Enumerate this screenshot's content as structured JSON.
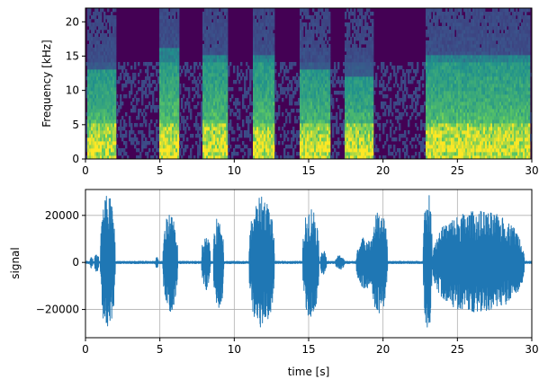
{
  "chart_data": [
    {
      "type": "heatmap",
      "title": "",
      "xlabel": "",
      "ylabel": "Frequency [kHz]",
      "xlim": [
        0,
        30
      ],
      "ylim": [
        0,
        22
      ],
      "xticks": [
        0,
        5,
        10,
        15,
        20,
        25,
        30
      ],
      "yticks": [
        0,
        5,
        10,
        15,
        20
      ],
      "grid": false,
      "colormap": "viridis",
      "energy_segments_s": [
        {
          "start": 0.1,
          "end": 2.0,
          "max_khz": 13
        },
        {
          "start": 4.9,
          "end": 6.3,
          "max_khz": 16
        },
        {
          "start": 7.9,
          "end": 9.5,
          "max_khz": 15
        },
        {
          "start": 11.3,
          "end": 12.7,
          "max_khz": 15
        },
        {
          "start": 14.4,
          "end": 16.5,
          "max_khz": 13
        },
        {
          "start": 17.4,
          "end": 19.4,
          "max_khz": 12
        },
        {
          "start": 22.9,
          "end": 29.9,
          "max_khz": 15
        }
      ]
    },
    {
      "type": "line",
      "title": "",
      "xlabel": "time [s]",
      "ylabel": "signal",
      "xlim": [
        0,
        30
      ],
      "ylim": [
        -32000,
        31000
      ],
      "xticks": [
        0,
        5,
        10,
        15,
        20,
        25,
        30
      ],
      "yticks": [
        -20000,
        0,
        20000
      ],
      "grid": true,
      "line_color": "#1f77b4",
      "bursts": [
        {
          "start": 0.3,
          "end": 0.5,
          "amp": 2500
        },
        {
          "start": 0.6,
          "end": 0.9,
          "amp": 4000
        },
        {
          "start": 1.0,
          "end": 2.0,
          "amp": 29000
        },
        {
          "start": 4.7,
          "end": 4.9,
          "amp": 2500
        },
        {
          "start": 5.2,
          "end": 6.2,
          "amp": 21000
        },
        {
          "start": 7.8,
          "end": 8.4,
          "amp": 12000
        },
        {
          "start": 8.6,
          "end": 9.3,
          "amp": 20000
        },
        {
          "start": 11.0,
          "end": 12.7,
          "amp": 28000
        },
        {
          "start": 14.6,
          "end": 15.7,
          "amp": 24000
        },
        {
          "start": 15.8,
          "end": 16.2,
          "amp": 6000
        },
        {
          "start": 16.8,
          "end": 17.4,
          "amp": 3000
        },
        {
          "start": 18.2,
          "end": 19.5,
          "amp": 11000
        },
        {
          "start": 19.2,
          "end": 20.3,
          "amp": 22000
        },
        {
          "start": 22.7,
          "end": 23.3,
          "amp": 30000
        },
        {
          "start": 23.3,
          "end": 29.5,
          "amp": 22000
        }
      ]
    }
  ]
}
